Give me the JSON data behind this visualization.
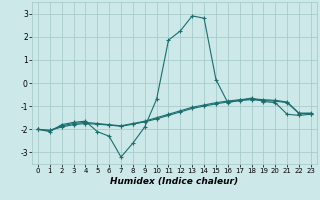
{
  "x": [
    0,
    1,
    2,
    3,
    4,
    5,
    6,
    7,
    8,
    9,
    10,
    11,
    12,
    13,
    14,
    15,
    16,
    17,
    18,
    19,
    20,
    21,
    22,
    23
  ],
  "line1": [
    -2.0,
    -2.1,
    -1.8,
    -1.7,
    -1.65,
    -2.1,
    -2.3,
    -3.2,
    -2.6,
    -1.9,
    -0.7,
    1.85,
    2.25,
    2.9,
    2.8,
    0.15,
    -0.85,
    -0.75,
    -0.65,
    -0.8,
    -0.85,
    -1.35,
    -1.4,
    -1.35
  ],
  "line2": [
    -2.0,
    -2.05,
    -1.85,
    -1.75,
    -1.7,
    -1.75,
    -1.8,
    -1.85,
    -1.75,
    -1.65,
    -1.5,
    -1.35,
    -1.2,
    -1.05,
    -0.95,
    -0.85,
    -0.78,
    -0.72,
    -0.68,
    -0.72,
    -0.75,
    -0.82,
    -1.3,
    -1.3
  ],
  "line3": [
    -2.0,
    -2.05,
    -1.9,
    -1.8,
    -1.75,
    -1.78,
    -1.82,
    -1.87,
    -1.78,
    -1.68,
    -1.55,
    -1.4,
    -1.25,
    -1.1,
    -1.0,
    -0.9,
    -0.82,
    -0.76,
    -0.72,
    -0.76,
    -0.78,
    -0.85,
    -1.32,
    -1.32
  ],
  "bg_color": "#cce8e8",
  "grid_color": "#aacccc",
  "line_color": "#1a6e6e",
  "xlabel": "Humidex (Indice chaleur)",
  "ylim": [
    -3.5,
    3.5
  ],
  "xlim": [
    -0.5,
    23.5
  ],
  "yticks": [
    -3,
    -2,
    -1,
    0,
    1,
    2,
    3
  ],
  "xticks": [
    0,
    1,
    2,
    3,
    4,
    5,
    6,
    7,
    8,
    9,
    10,
    11,
    12,
    13,
    14,
    15,
    16,
    17,
    18,
    19,
    20,
    21,
    22,
    23
  ]
}
